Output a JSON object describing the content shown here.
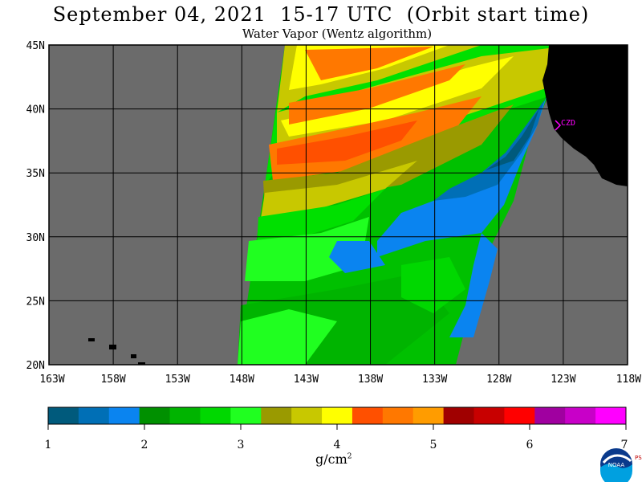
{
  "title": "September 04, 2021  15-17 UTC  (Orbit start time)",
  "subtitle": "Water Vapor (Wentz algorithm)",
  "lat_labels": [
    "45N",
    "40N",
    "35N",
    "30N",
    "25N",
    "20N"
  ],
  "lon_labels": [
    "163W",
    "158W",
    "153W",
    "148W",
    "143W",
    "138W",
    "133W",
    "128W",
    "123W",
    "118W"
  ],
  "station_label": "CZD",
  "units_base": "g/cm",
  "units_exp": "2",
  "colorbar_ticks": [
    "1",
    "2",
    "3",
    "4",
    "5",
    "6",
    "7"
  ],
  "colorbar_colors": [
    "#005a7c",
    "#006fb6",
    "#0a84f0",
    "#009000",
    "#00b400",
    "#00d800",
    "#20ff20",
    "#9a9a00",
    "#c8c800",
    "#ffff00",
    "#ff5000",
    "#ff7800",
    "#ff9c00",
    "#a00000",
    "#c80000",
    "#ff0000",
    "#a000a0",
    "#c800c8",
    "#ff00ff"
  ],
  "map_colors": {
    "no_data": "#6b6b6b",
    "land": "#000000",
    "grid": "#000000",
    "station": "#ff00ff"
  },
  "logo_text": "NOAA",
  "logo_side_text": "PSL"
}
